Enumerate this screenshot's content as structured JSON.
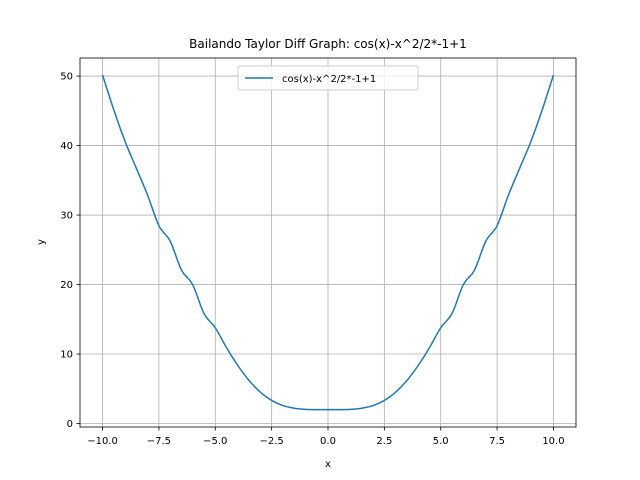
{
  "chart_data": {
    "type": "line",
    "title": "Bailando Taylor Diff Graph: cos(x)-x^2/2*-1+1",
    "xlabel": "x",
    "ylabel": "y",
    "xlim": [
      -11.0,
      11.0
    ],
    "ylim": [
      -0.5,
      52.6
    ],
    "xticks": [
      -10.0,
      -7.5,
      -5.0,
      -2.5,
      0.0,
      2.5,
      5.0,
      7.5,
      10.0
    ],
    "xtick_labels": [
      "−10.0",
      "−7.5",
      "−5.0",
      "−2.5",
      "0.0",
      "2.5",
      "5.0",
      "7.5",
      "10.0"
    ],
    "yticks": [
      0,
      10,
      20,
      30,
      40,
      50
    ],
    "ytick_labels": [
      "0",
      "10",
      "20",
      "30",
      "40",
      "50"
    ],
    "grid": true,
    "legend_position": "upper center",
    "series": [
      {
        "name": "cos(x)-x^2/2*-1+1",
        "color": "#1f77b4",
        "x": [
          -10,
          -9.5,
          -9,
          -8.5,
          -8,
          -7.5,
          -7,
          -6.5,
          -6,
          -5.5,
          -5,
          -4.5,
          -4,
          -3.5,
          -3,
          -2.5,
          -2,
          -1.5,
          -1,
          -0.5,
          0,
          0.5,
          1,
          1.5,
          2,
          2.5,
          3,
          3.5,
          4,
          4.5,
          5,
          5.5,
          6,
          6.5,
          7,
          7.5,
          8,
          8.5,
          9,
          9.5,
          10
        ],
        "y": [
          50.16,
          45.13,
          40.59,
          36.73,
          32.85,
          28.47,
          26.25,
          22.1,
          19.96,
          15.83,
          13.78,
          10.91,
          8.35,
          6.19,
          4.51,
          3.32,
          2.58,
          2.2,
          2.04,
          2.0,
          2.0,
          2.0,
          2.04,
          2.2,
          2.58,
          3.32,
          4.51,
          6.19,
          8.35,
          10.91,
          13.78,
          15.83,
          19.96,
          22.1,
          26.25,
          28.47,
          32.85,
          36.73,
          40.59,
          45.13,
          50.16
        ]
      }
    ]
  }
}
